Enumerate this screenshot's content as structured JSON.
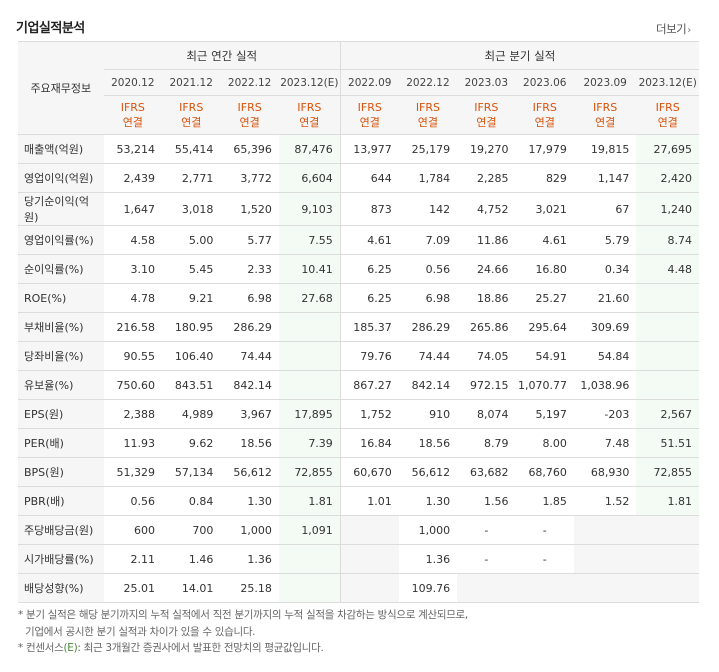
{
  "title": "기업실적분석",
  "more_label": "더보기",
  "header": {
    "row_head": "주요재무정보",
    "annual_label": "최근 연간 실적",
    "quarter_label": "최근 분기 실적",
    "periods": [
      "2020.12",
      "2021.12",
      "2022.12",
      "2023.12(E)",
      "2022.09",
      "2022.12",
      "2023.03",
      "2023.06",
      "2023.09",
      "2023.12(E)"
    ],
    "basis_top": "IFRS",
    "basis_bottom": "연결"
  },
  "rows": [
    {
      "label": "매출액(억원)",
      "values": [
        "53,214",
        "55,414",
        "65,396",
        "87,476",
        "13,977",
        "25,179",
        "19,270",
        "17,979",
        "19,815",
        "27,695"
      ]
    },
    {
      "label": "영업이익(억원)",
      "values": [
        "2,439",
        "2,771",
        "3,772",
        "6,604",
        "644",
        "1,784",
        "2,285",
        "829",
        "1,147",
        "2,420"
      ]
    },
    {
      "label": "당기순이익(억원)",
      "values": [
        "1,647",
        "3,018",
        "1,520",
        "9,103",
        "873",
        "142",
        "4,752",
        "3,021",
        "67",
        "1,240"
      ]
    },
    {
      "label": "영업이익률(%)",
      "values": [
        "4.58",
        "5.00",
        "5.77",
        "7.55",
        "4.61",
        "7.09",
        "11.86",
        "4.61",
        "5.79",
        "8.74"
      ]
    },
    {
      "label": "순이익률(%)",
      "values": [
        "3.10",
        "5.45",
        "2.33",
        "10.41",
        "6.25",
        "0.56",
        "24.66",
        "16.80",
        "0.34",
        "4.48"
      ]
    },
    {
      "label": "ROE(%)",
      "values": [
        "4.78",
        "9.21",
        "6.98",
        "27.68",
        "6.25",
        "6.98",
        "18.86",
        "25.27",
        "21.60",
        ""
      ]
    },
    {
      "label": "부채비율(%)",
      "values": [
        "216.58",
        "180.95",
        "286.29",
        "",
        "185.37",
        "286.29",
        "265.86",
        "295.64",
        "309.69",
        ""
      ]
    },
    {
      "label": "당좌비율(%)",
      "values": [
        "90.55",
        "106.40",
        "74.44",
        "",
        "79.76",
        "74.44",
        "74.05",
        "54.91",
        "54.84",
        ""
      ]
    },
    {
      "label": "유보율(%)",
      "values": [
        "750.60",
        "843.51",
        "842.14",
        "",
        "867.27",
        "842.14",
        "972.15",
        "1,070.77",
        "1,038.96",
        ""
      ]
    },
    {
      "label": "EPS(원)",
      "values": [
        "2,388",
        "4,989",
        "3,967",
        "17,895",
        "1,752",
        "910",
        "8,074",
        "5,197",
        "-203",
        "2,567"
      ]
    },
    {
      "label": "PER(배)",
      "values": [
        "11.93",
        "9.62",
        "18.56",
        "7.39",
        "16.84",
        "18.56",
        "8.79",
        "8.00",
        "7.48",
        "51.51"
      ]
    },
    {
      "label": "BPS(원)",
      "values": [
        "51,329",
        "57,134",
        "56,612",
        "72,855",
        "60,670",
        "56,612",
        "63,682",
        "68,760",
        "68,930",
        "72,855"
      ]
    },
    {
      "label": "PBR(배)",
      "values": [
        "0.56",
        "0.84",
        "1.30",
        "1.81",
        "1.01",
        "1.30",
        "1.56",
        "1.85",
        "1.52",
        "1.81"
      ]
    },
    {
      "label": "주당배당금(원)",
      "values": [
        "600",
        "700",
        "1,000",
        "1,091",
        "",
        "1,000",
        "-",
        "-",
        "",
        ""
      ]
    },
    {
      "label": "시가배당률(%)",
      "values": [
        "2.11",
        "1.46",
        "1.36",
        "",
        "",
        "1.36",
        "-",
        "-",
        "",
        ""
      ]
    },
    {
      "label": "배당성향(%)",
      "values": [
        "25.01",
        "14.01",
        "25.18",
        "",
        "",
        "109.76",
        "",
        "",
        "",
        ""
      ]
    }
  ],
  "notes": {
    "line1": "* 분기 실적은 해당 분기까지의 누적 실적에서 직전 분기까지의 누적 실적을 차감하는 방식으로 계산되므로,",
    "line2": "기업에서 공시한 분기 실적과 차이가 있을 수 있습니다.",
    "line3_prefix": "* 컨센서스",
    "line3_e": "(E)",
    "line3_rest": ": 최근 3개월간 증권사에서 발표한 전망치의 평균값입니다."
  },
  "colors": {
    "accent_orange": "#d9520a",
    "negative_red": "#e30000",
    "estimate_bg": "#f4fbf4",
    "header_bg": "#f6f6f6",
    "consensus_green": "#4a8a3a"
  }
}
